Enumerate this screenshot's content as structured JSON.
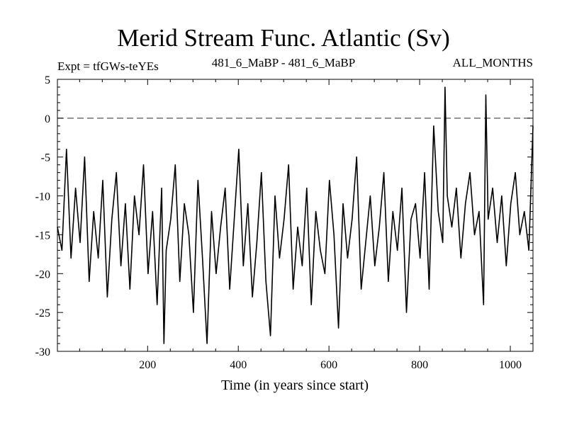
{
  "chart_data": {
    "type": "line",
    "title": "Merid Stream Func. Atlantic (Sv)",
    "left_label": "Expt = tfGWs-teYEs",
    "center_label": "481_6_MaBP - 481_6_MaBP",
    "right_label": "ALL_MONTHS",
    "xlabel": "Time (in years since start)",
    "ylabel": "",
    "xlim": [
      1,
      1050
    ],
    "ylim": [
      -30,
      5
    ],
    "xticks": [
      200,
      400,
      600,
      800,
      1000
    ],
    "yticks": [
      5,
      0,
      -5,
      -10,
      -15,
      -20,
      -25,
      -30
    ],
    "reference_line": {
      "y": 0,
      "style": "dashed"
    },
    "grid": false,
    "legend": "none",
    "series": [
      {
        "x": [
          1,
          11,
          21,
          31,
          41,
          51,
          61,
          71,
          81,
          91,
          101,
          111,
          121,
          131,
          141,
          151,
          161,
          171,
          181,
          191,
          201,
          211,
          221,
          231,
          236,
          241,
          251,
          261,
          271,
          281,
          291,
          301,
          311,
          321,
          331,
          341,
          351,
          361,
          371,
          381,
          391,
          401,
          411,
          421,
          431,
          441,
          451,
          461,
          471,
          481,
          491,
          501,
          511,
          521,
          531,
          541,
          551,
          561,
          571,
          581,
          591,
          601,
          611,
          621,
          631,
          641,
          651,
          661,
          671,
          681,
          691,
          701,
          711,
          721,
          731,
          741,
          751,
          761,
          771,
          781,
          791,
          801,
          811,
          821,
          831,
          841,
          851,
          856,
          861,
          871,
          881,
          891,
          901,
          911,
          921,
          931,
          941,
          946,
          951,
          961,
          971,
          981,
          991,
          1001,
          1011,
          1021,
          1031,
          1041,
          1050
        ],
        "y": [
          -14,
          -17,
          -4,
          -18,
          -9,
          -16,
          -5,
          -21,
          -12,
          -18,
          -8,
          -23,
          -13,
          -7,
          -19,
          -11,
          -22,
          -10,
          -15,
          -6,
          -20,
          -12,
          -24,
          -9,
          -29,
          -17,
          -13,
          -6,
          -21,
          -11,
          -15,
          -25,
          -8,
          -18,
          -29,
          -12,
          -20,
          -14,
          -9,
          -22,
          -13,
          -4,
          -19,
          -11,
          -23,
          -16,
          -7,
          -21,
          -28,
          -10,
          -18,
          -13,
          -6,
          -22,
          -14,
          -19,
          -9,
          -24,
          -12,
          -17,
          -20,
          -8,
          -15,
          -27,
          -11,
          -18,
          -13,
          -5,
          -22,
          -16,
          -10,
          -19,
          -14,
          -7,
          -21,
          -12,
          -17,
          -9,
          -25,
          -13,
          -11,
          -18,
          -7,
          -22,
          -1,
          -12,
          -16,
          4,
          -10,
          -14,
          -9,
          -18,
          -11,
          -7,
          -15,
          -12,
          -24,
          3,
          -13,
          -9,
          -16,
          -10,
          -19,
          -11,
          -7,
          -15,
          -12,
          -17,
          -1
        ]
      }
    ]
  }
}
